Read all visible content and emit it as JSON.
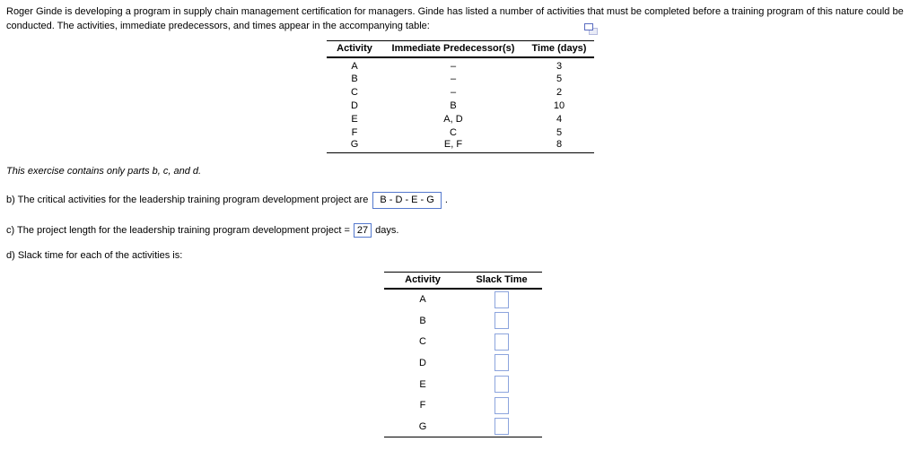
{
  "problem": {
    "statement": "Roger Ginde is developing a program in supply chain management certification for managers. Ginde has listed a number of activities that must be completed before a training program of this nature could be conducted. The activities, immediate predecessors, and times appear in the accompanying table:",
    "note": "This exercise contains only parts b, c, and d."
  },
  "icons": {
    "popup_window": "duplicate-window-icon"
  },
  "activity_table": {
    "headers": [
      "Activity",
      "Immediate Predecessor(s)",
      "Time (days)"
    ],
    "rows": [
      {
        "activity": "A",
        "predecessors": "–",
        "time": "3"
      },
      {
        "activity": "B",
        "predecessors": "–",
        "time": "5"
      },
      {
        "activity": "C",
        "predecessors": "–",
        "time": "2"
      },
      {
        "activity": "D",
        "predecessors": "B",
        "time": "10"
      },
      {
        "activity": "E",
        "predecessors": "A, D",
        "time": "4"
      },
      {
        "activity": "F",
        "predecessors": "C",
        "time": "5"
      },
      {
        "activity": "G",
        "predecessors": "E, F",
        "time": "8"
      }
    ]
  },
  "part_b": {
    "text": "b) The critical activities for the leadership training program development project are",
    "answer": "B - D - E - G",
    "suffix": "."
  },
  "part_c": {
    "text": "c) The project length for the leadership training program development project =",
    "answer": "27",
    "suffix": "days."
  },
  "part_d": {
    "text": "d) Slack time for each of the activities is:"
  },
  "slack_table": {
    "headers": [
      "Activity",
      "Slack Time"
    ],
    "rows": [
      {
        "activity": "A",
        "slack": ""
      },
      {
        "activity": "B",
        "slack": ""
      },
      {
        "activity": "C",
        "slack": ""
      },
      {
        "activity": "D",
        "slack": ""
      },
      {
        "activity": "E",
        "slack": ""
      },
      {
        "activity": "F",
        "slack": ""
      },
      {
        "activity": "G",
        "slack": ""
      }
    ]
  },
  "colors": {
    "answer_box_border": "#5478cd",
    "slack_box_border": "#8ca4dd",
    "table_line": "#000000",
    "text": "#000000"
  }
}
